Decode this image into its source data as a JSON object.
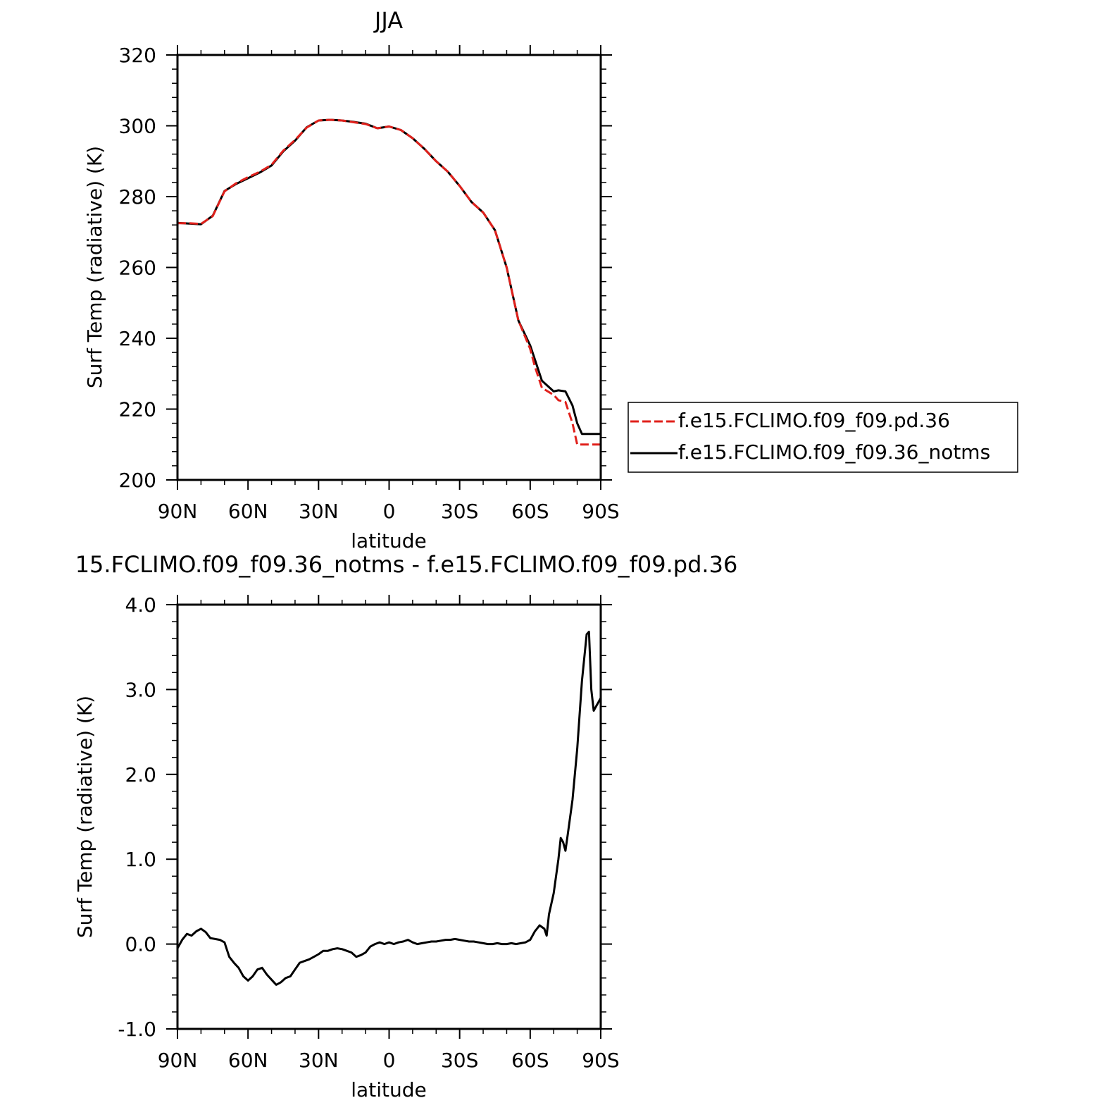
{
  "chart_data": [
    {
      "type": "line",
      "title": "JJA",
      "xlabel": "latitude",
      "ylabel": "Surf Temp (radiative) (K)",
      "xlim": [
        90,
        -90
      ],
      "ylim": [
        200,
        320
      ],
      "x_tick_values": [
        90,
        60,
        30,
        0,
        -30,
        -60,
        -90
      ],
      "x_tick_labels": [
        "90N",
        "60N",
        "30N",
        "0",
        "30S",
        "60S",
        "90S"
      ],
      "y_ticks": [
        "200",
        "220",
        "240",
        "260",
        "280",
        "300",
        "320"
      ],
      "y_tick_values": [
        200,
        220,
        240,
        260,
        280,
        300,
        320
      ],
      "legend": {
        "position": "right",
        "entries": [
          "f.e15.FCLIMO.f09_f09.pd.36",
          "f.e15.FCLIMO.f09_f09.36_notms"
        ]
      },
      "x": [
        90,
        85,
        80,
        75,
        70,
        65,
        60,
        55,
        50,
        45,
        40,
        35,
        30,
        25,
        20,
        15,
        10,
        5,
        0,
        -5,
        -10,
        -15,
        -20,
        -25,
        -30,
        -35,
        -40,
        -45,
        -50,
        -55,
        -60,
        -62,
        -65,
        -70,
        -72,
        -75,
        -78,
        -80,
        -82,
        -84,
        -86,
        -88,
        -90
      ],
      "series": [
        {
          "name": "f.e15.FCLIMO.f09_f09.pd.36",
          "color": "#e0201b",
          "dash": "dashed",
          "values": [
            272.5,
            272.5,
            272.3,
            274.5,
            281.5,
            283.8,
            285.5,
            287.0,
            289.0,
            293.0,
            296.0,
            299.5,
            301.5,
            301.7,
            301.5,
            301.0,
            300.5,
            299.3,
            299.8,
            298.8,
            296.5,
            293.5,
            290.0,
            287.0,
            283.0,
            278.5,
            275.5,
            270.5,
            260.0,
            245.0,
            237.0,
            232.0,
            226.0,
            224.0,
            222.5,
            222.0,
            216.0,
            210.0,
            210.0,
            210.0,
            210.0,
            210.0,
            210.0
          ]
        },
        {
          "name": "f.e15.FCLIMO.f09_f09.36_notms",
          "color": "#000000",
          "dash": "solid",
          "values": [
            272.6,
            272.4,
            272.2,
            274.6,
            281.6,
            283.6,
            285.2,
            286.8,
            288.8,
            292.8,
            295.8,
            299.6,
            301.5,
            301.7,
            301.5,
            301.1,
            300.6,
            299.3,
            299.8,
            298.8,
            296.5,
            293.5,
            290.0,
            287.0,
            283.0,
            278.5,
            275.5,
            270.5,
            260.0,
            245.0,
            238.0,
            234.0,
            228.0,
            225.0,
            225.3,
            225.0,
            221.0,
            216.0,
            213.0,
            213.0,
            213.0,
            213.0,
            213.0
          ]
        }
      ]
    },
    {
      "type": "line",
      "title": "15.FCLIMO.f09_f09.36_notms - f.e15.FCLIMO.f09_f09.pd.36",
      "xlabel": "latitude",
      "ylabel": "Surf Temp (radiative) (K)",
      "xlim": [
        90,
        -90
      ],
      "ylim": [
        -1.0,
        4.0
      ],
      "x_tick_values": [
        90,
        60,
        30,
        0,
        -30,
        -60,
        -90
      ],
      "x_tick_labels": [
        "90N",
        "60N",
        "30N",
        "0",
        "30S",
        "60S",
        "90S"
      ],
      "y_ticks": [
        "-1.0",
        "0.0",
        "1.0",
        "2.0",
        "3.0",
        "4.0"
      ],
      "y_tick_values": [
        -1.0,
        0.0,
        1.0,
        2.0,
        3.0,
        4.0
      ],
      "x": [
        90,
        88,
        86,
        84,
        82,
        80,
        78,
        76,
        74,
        72,
        70,
        68,
        66,
        64,
        62,
        60,
        58,
        56,
        54,
        52,
        50,
        48,
        46,
        44,
        42,
        40,
        38,
        36,
        34,
        32,
        30,
        28,
        26,
        24,
        22,
        20,
        18,
        16,
        14,
        12,
        10,
        8,
        6,
        4,
        2,
        0,
        -2,
        -4,
        -6,
        -8,
        -10,
        -12,
        -14,
        -16,
        -18,
        -20,
        -22,
        -24,
        -26,
        -28,
        -30,
        -32,
        -34,
        -36,
        -38,
        -40,
        -42,
        -44,
        -46,
        -48,
        -50,
        -52,
        -54,
        -56,
        -58,
        -60,
        -62,
        -64,
        -66,
        -67,
        -68,
        -70,
        -72,
        -73,
        -74,
        -75,
        -76,
        -78,
        -80,
        -82,
        -84,
        -85,
        -86,
        -87,
        -88,
        -89,
        -90
      ],
      "series": [
        {
          "name": "",
          "color": "#000000",
          "dash": "solid",
          "values": [
            -0.05,
            0.05,
            0.12,
            0.1,
            0.15,
            0.18,
            0.14,
            0.07,
            0.06,
            0.05,
            0.02,
            -0.15,
            -0.22,
            -0.28,
            -0.38,
            -0.43,
            -0.38,
            -0.3,
            -0.28,
            -0.36,
            -0.42,
            -0.48,
            -0.45,
            -0.4,
            -0.38,
            -0.3,
            -0.22,
            -0.2,
            -0.18,
            -0.15,
            -0.12,
            -0.08,
            -0.08,
            -0.06,
            -0.05,
            -0.06,
            -0.08,
            -0.1,
            -0.15,
            -0.13,
            -0.1,
            -0.03,
            0.0,
            0.02,
            0.0,
            0.02,
            0.0,
            0.02,
            0.03,
            0.05,
            0.02,
            0.0,
            0.01,
            0.02,
            0.03,
            0.03,
            0.04,
            0.05,
            0.05,
            0.06,
            0.05,
            0.04,
            0.03,
            0.03,
            0.02,
            0.01,
            0.0,
            0.0,
            0.01,
            0.0,
            0.0,
            0.01,
            0.0,
            0.01,
            0.02,
            0.05,
            0.15,
            0.22,
            0.18,
            0.1,
            0.35,
            0.6,
            1.0,
            1.25,
            1.2,
            1.1,
            1.3,
            1.7,
            2.3,
            3.1,
            3.65,
            3.68,
            3.0,
            2.75,
            2.8,
            2.85,
            2.9
          ]
        }
      ]
    }
  ]
}
